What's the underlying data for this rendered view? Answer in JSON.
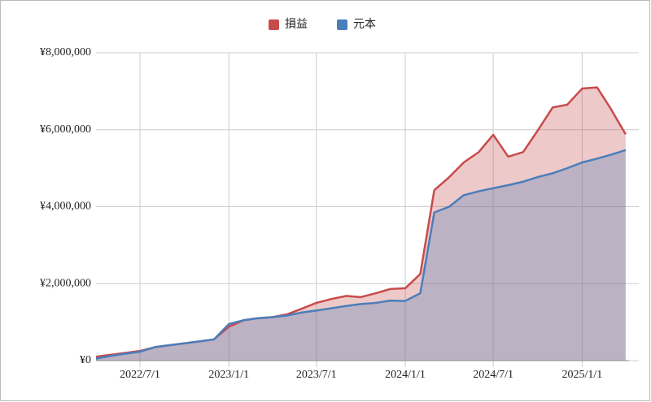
{
  "chart_data": {
    "type": "area",
    "x": [
      "2022/4/1",
      "2022/5/1",
      "2022/6/1",
      "2022/7/1",
      "2022/8/1",
      "2022/9/1",
      "2022/10/1",
      "2022/11/1",
      "2022/12/1",
      "2023/1/1",
      "2023/2/1",
      "2023/3/1",
      "2023/4/1",
      "2023/5/1",
      "2023/6/1",
      "2023/7/1",
      "2023/8/1",
      "2023/9/1",
      "2023/10/1",
      "2023/11/1",
      "2023/12/1",
      "2024/1/1",
      "2024/2/1",
      "2024/3/1",
      "2024/4/1",
      "2024/5/1",
      "2024/6/1",
      "2024/7/1",
      "2024/8/1",
      "2024/9/1",
      "2024/10/1",
      "2024/11/1",
      "2024/12/1",
      "2025/1/1",
      "2025/2/1",
      "2025/3/1",
      "2025/4/1"
    ],
    "series": [
      {
        "name": "損益",
        "color": "#c84b4b",
        "values": [
          100000,
          150000,
          200000,
          250000,
          350000,
          400000,
          450000,
          500000,
          550000,
          880000,
          1050000,
          1100000,
          1130000,
          1200000,
          1350000,
          1500000,
          1600000,
          1680000,
          1650000,
          1750000,
          1860000,
          1880000,
          2250000,
          4430000,
          4770000,
          5150000,
          5420000,
          5870000,
          5300000,
          5420000,
          5980000,
          6580000,
          6650000,
          7070000,
          7100000,
          6550000,
          5880000
        ]
      },
      {
        "name": "元本",
        "color": "#4a7ebb",
        "values": [
          50000,
          120000,
          180000,
          230000,
          350000,
          400000,
          450000,
          500000,
          550000,
          950000,
          1050000,
          1100000,
          1130000,
          1170000,
          1250000,
          1300000,
          1360000,
          1420000,
          1470000,
          1500000,
          1560000,
          1550000,
          1750000,
          3850000,
          4000000,
          4300000,
          4400000,
          4480000,
          4560000,
          4650000,
          4770000,
          4870000,
          5000000,
          5150000,
          5250000,
          5350000,
          5470000
        ]
      }
    ],
    "xlim": [
      "2022/4/1",
      "2025/4/8"
    ],
    "xticks": [
      "2022/7/1",
      "2023/1/1",
      "2023/7/1",
      "2024/1/1",
      "2024/7/1",
      "2025/1/1"
    ],
    "ylim": [
      0,
      8000000
    ],
    "yticks": [
      {
        "value": 0,
        "label": "¥0"
      },
      {
        "value": 2000000,
        "label": "¥2,000,000"
      },
      {
        "value": 4000000,
        "label": "¥4,000,000"
      },
      {
        "value": 6000000,
        "label": "¥6,000,000"
      },
      {
        "value": 8000000,
        "label": "¥8,000,000"
      }
    ],
    "grid": true,
    "legend": "top"
  }
}
